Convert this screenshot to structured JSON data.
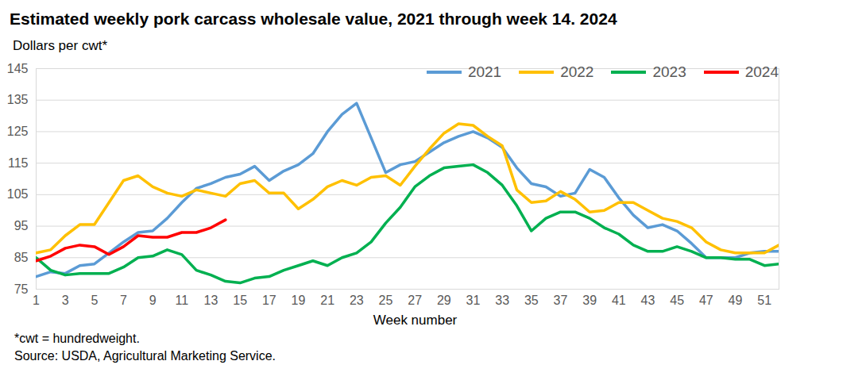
{
  "chart_data": {
    "type": "line",
    "title": "Estimated weekly pork carcass wholesale value, 2021 through week 14. 2024",
    "y_label": "Dollars per cwt*",
    "x_label": "Week number",
    "annotations": [
      "*cwt = hundredweight.",
      "Source: USDA, Agricultural Marketing Service."
    ],
    "x": [
      1,
      2,
      3,
      4,
      5,
      6,
      7,
      8,
      9,
      10,
      11,
      12,
      13,
      14,
      15,
      16,
      17,
      18,
      19,
      20,
      21,
      22,
      23,
      24,
      25,
      26,
      27,
      28,
      29,
      30,
      31,
      32,
      33,
      34,
      35,
      36,
      37,
      38,
      39,
      40,
      41,
      42,
      43,
      44,
      45,
      46,
      47,
      48,
      49,
      50,
      51,
      52
    ],
    "series": [
      {
        "name": "2021",
        "color": "#5b9bd5",
        "values": [
          79,
          80.5,
          80,
          82.5,
          83,
          86.5,
          90,
          93,
          93.5,
          97.5,
          102.5,
          107,
          108.5,
          110.5,
          111.5,
          114,
          109.5,
          112.5,
          114.5,
          118,
          125,
          130.5,
          134,
          123,
          112,
          114.5,
          115.5,
          118.5,
          121.5,
          123.5,
          125,
          123,
          120,
          113.5,
          108.5,
          107.5,
          104.5,
          105.5,
          113,
          110.5,
          104,
          98.5,
          94.5,
          95.5,
          93.5,
          89.5,
          85,
          85,
          85,
          86.5,
          87,
          87
        ]
      },
      {
        "name": "2022",
        "color": "#ffc000",
        "values": [
          86.5,
          87.5,
          92,
          95.5,
          95.5,
          102.5,
          109.5,
          111,
          107.5,
          105.5,
          104.5,
          106.5,
          105.5,
          104.5,
          108.5,
          109.5,
          105.5,
          105.5,
          100.5,
          103.5,
          107.5,
          109.5,
          108,
          110.5,
          111,
          108,
          114,
          119.5,
          124.5,
          127.5,
          127,
          123.5,
          120.5,
          106.5,
          102.5,
          103,
          106,
          103.5,
          99.5,
          100,
          102.5,
          102.5,
          100,
          97.5,
          96.5,
          94.5,
          90,
          87.5,
          86.5,
          86.5,
          86.5,
          89
        ]
      },
      {
        "name": "2023",
        "color": "#00b050",
        "values": [
          85,
          81,
          79.5,
          80,
          80,
          80,
          82,
          85,
          85.5,
          87.5,
          86,
          81,
          79.5,
          77.5,
          77,
          78.5,
          79,
          81,
          82.5,
          84,
          82.5,
          85,
          86.5,
          90,
          96,
          101,
          107.5,
          111,
          113.5,
          114,
          114.5,
          112,
          108,
          101.5,
          93.5,
          97.5,
          99.5,
          99.5,
          97.5,
          94.5,
          92.5,
          89,
          87,
          87,
          88.5,
          87,
          85,
          85,
          84.5,
          84.5,
          82.5,
          83
        ]
      },
      {
        "name": "2024",
        "color": "#ff0000",
        "values": [
          84,
          85.5,
          88,
          89,
          88.5,
          86,
          88.5,
          92,
          91.5,
          91.5,
          93,
          93,
          94.5,
          97,
          null,
          null,
          null,
          null,
          null,
          null,
          null,
          null,
          null,
          null,
          null,
          null,
          null,
          null,
          null,
          null,
          null,
          null,
          null,
          null,
          null,
          null,
          null,
          null,
          null,
          null,
          null,
          null,
          null,
          null,
          null,
          null,
          null,
          null,
          null,
          null,
          null,
          null
        ]
      }
    ],
    "xlim": [
      1,
      52
    ],
    "xticks": [
      1,
      3,
      5,
      7,
      9,
      11,
      13,
      15,
      17,
      19,
      21,
      23,
      25,
      27,
      29,
      31,
      33,
      35,
      37,
      39,
      41,
      43,
      45,
      47,
      49,
      51
    ],
    "ylim": [
      75,
      145
    ],
    "yticks": [
      75,
      85,
      95,
      105,
      115,
      125,
      135,
      145
    ],
    "grid": true,
    "legend": "top-right"
  }
}
